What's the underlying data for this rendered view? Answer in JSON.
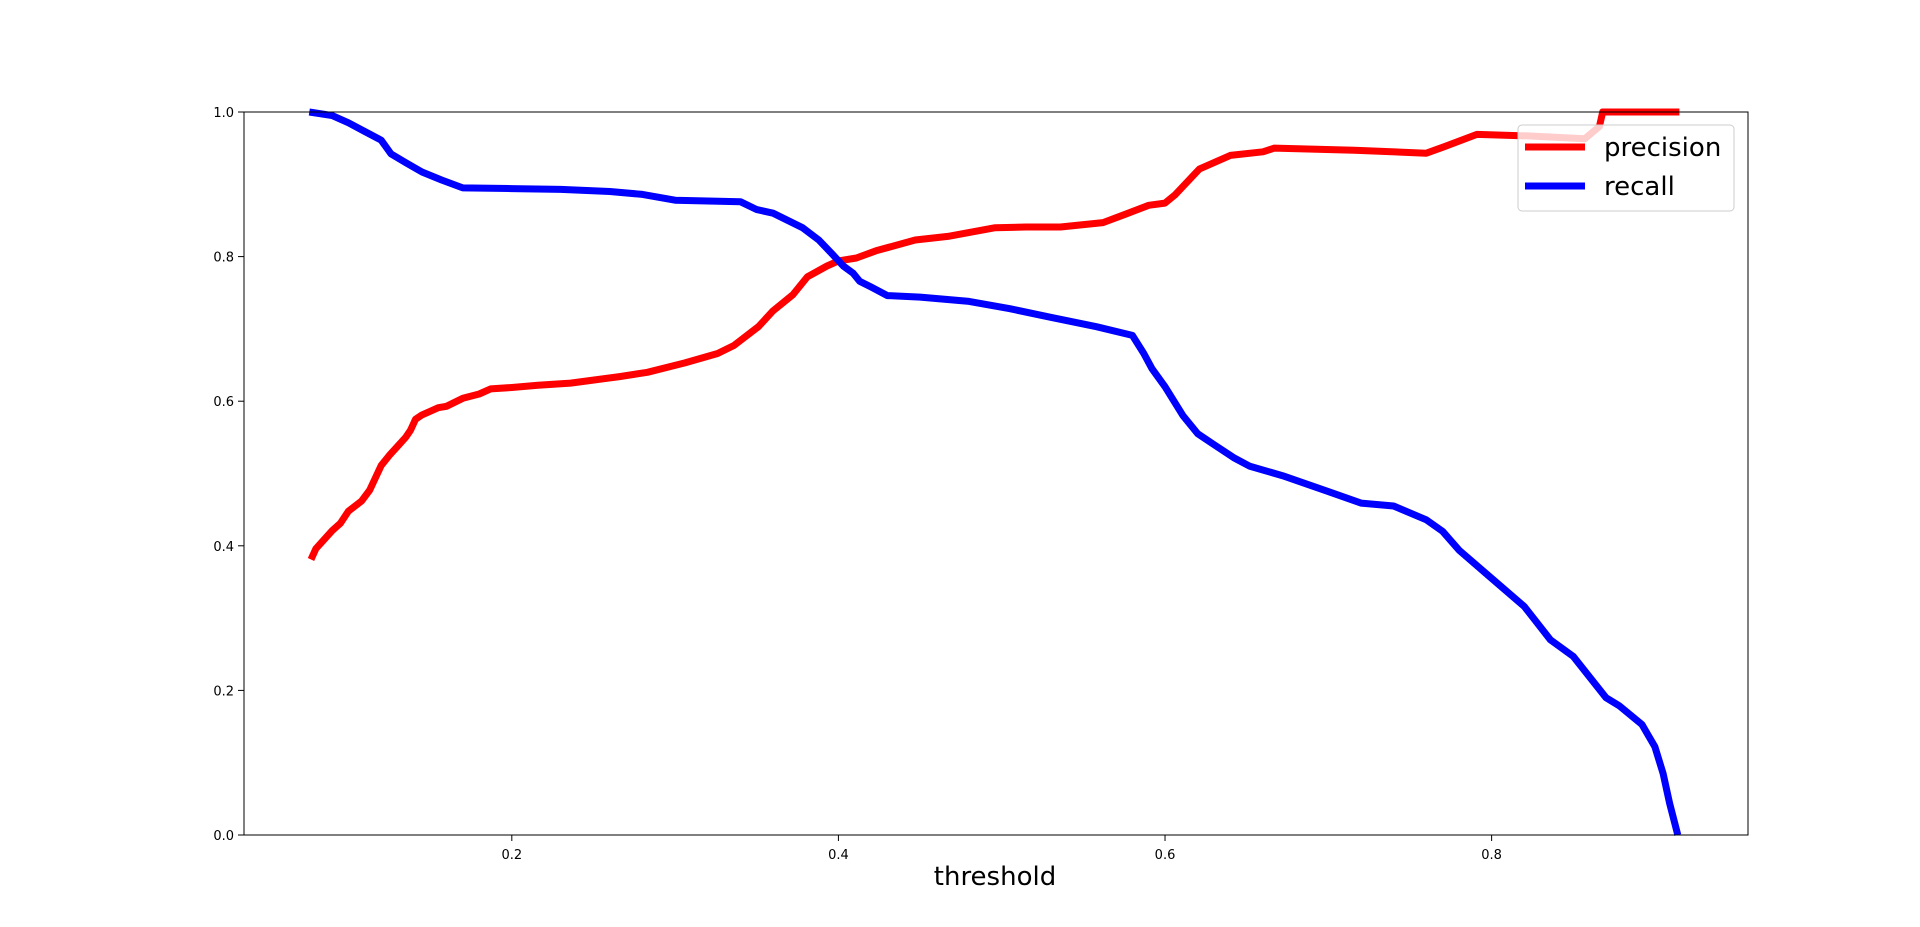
{
  "chart_data": {
    "type": "line",
    "title": "",
    "xlabel": "threshold",
    "ylabel": "",
    "xlim": [
      0.036,
      0.957
    ],
    "ylim": [
      0.0,
      1.0
    ],
    "xticks": [
      0.2,
      0.4,
      0.6,
      0.8
    ],
    "xtick_labels": [
      "0.2",
      "0.4",
      "0.6",
      "0.8"
    ],
    "yticks": [
      0.0,
      0.2,
      0.4,
      0.6,
      0.8,
      1.0
    ],
    "ytick_labels": [
      "0.0",
      "0.2",
      "0.4",
      "0.6",
      "0.8",
      "1.0"
    ],
    "grid": false,
    "legend": {
      "position": "top-right"
    },
    "series": [
      {
        "name": "precision",
        "color": "#ff0000",
        "x": [
          0.077,
          0.08,
          0.09,
          0.095,
          0.1,
          0.108,
          0.113,
          0.12,
          0.125,
          0.131,
          0.135,
          0.138,
          0.141,
          0.145,
          0.15,
          0.155,
          0.16,
          0.17,
          0.18,
          0.187,
          0.2,
          0.216,
          0.236,
          0.266,
          0.283,
          0.306,
          0.326,
          0.336,
          0.351,
          0.36,
          0.372,
          0.381,
          0.393,
          0.4,
          0.411,
          0.423,
          0.447,
          0.467,
          0.496,
          0.515,
          0.536,
          0.562,
          0.575,
          0.59,
          0.6,
          0.606,
          0.621,
          0.64,
          0.66,
          0.667,
          0.716,
          0.76,
          0.771,
          0.791,
          0.822,
          0.857,
          0.866,
          0.868,
          0.915
        ],
        "y": [
          0.381,
          0.396,
          0.421,
          0.431,
          0.448,
          0.462,
          0.477,
          0.511,
          0.525,
          0.54,
          0.55,
          0.56,
          0.575,
          0.581,
          0.586,
          0.591,
          0.593,
          0.604,
          0.61,
          0.617,
          0.619,
          0.622,
          0.625,
          0.634,
          0.64,
          0.653,
          0.666,
          0.677,
          0.703,
          0.725,
          0.747,
          0.772,
          0.787,
          0.794,
          0.798,
          0.808,
          0.823,
          0.828,
          0.84,
          0.841,
          0.841,
          0.847,
          0.858,
          0.871,
          0.874,
          0.885,
          0.921,
          0.94,
          0.945,
          0.95,
          0.947,
          0.943,
          0.952,
          0.969,
          0.967,
          0.963,
          0.98,
          1.0,
          1.0
        ]
      },
      {
        "name": "recall",
        "color": "#0000ff",
        "x": [
          0.076,
          0.09,
          0.1,
          0.11,
          0.12,
          0.126,
          0.135,
          0.145,
          0.157,
          0.17,
          0.2,
          0.23,
          0.26,
          0.28,
          0.3,
          0.34,
          0.35,
          0.36,
          0.378,
          0.388,
          0.396,
          0.403,
          0.409,
          0.413,
          0.42,
          0.43,
          0.45,
          0.48,
          0.505,
          0.53,
          0.558,
          0.58,
          0.587,
          0.592,
          0.6,
          0.611,
          0.62,
          0.63,
          0.642,
          0.652,
          0.672,
          0.7,
          0.72,
          0.74,
          0.76,
          0.77,
          0.78,
          0.8,
          0.82,
          0.836,
          0.85,
          0.863,
          0.87,
          0.878,
          0.892,
          0.9,
          0.905,
          0.909,
          0.914
        ],
        "y": [
          1.0,
          0.995,
          0.985,
          0.973,
          0.961,
          0.942,
          0.93,
          0.917,
          0.906,
          0.895,
          0.894,
          0.893,
          0.89,
          0.886,
          0.878,
          0.876,
          0.865,
          0.86,
          0.84,
          0.823,
          0.804,
          0.787,
          0.777,
          0.766,
          0.758,
          0.746,
          0.744,
          0.738,
          0.728,
          0.716,
          0.703,
          0.691,
          0.666,
          0.645,
          0.62,
          0.58,
          0.555,
          0.54,
          0.522,
          0.51,
          0.497,
          0.475,
          0.459,
          0.455,
          0.436,
          0.42,
          0.394,
          0.355,
          0.316,
          0.27,
          0.247,
          0.21,
          0.19,
          0.179,
          0.153,
          0.122,
          0.085,
          0.044,
          0.0
        ]
      }
    ]
  }
}
